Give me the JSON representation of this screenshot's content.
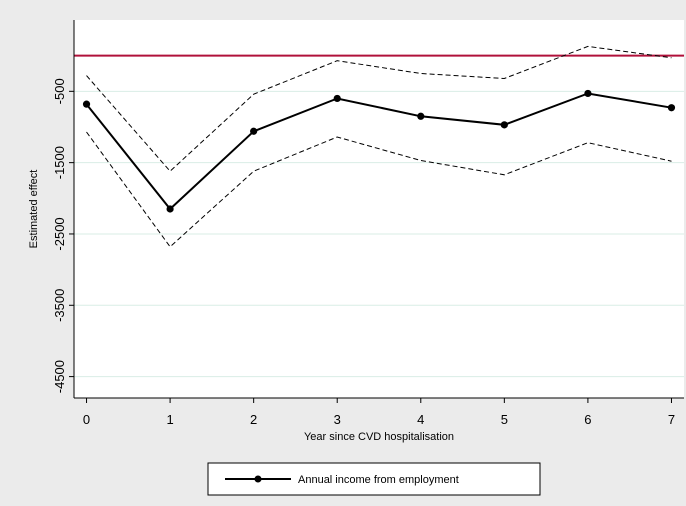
{
  "chart_data": {
    "type": "line",
    "title": "",
    "xlabel": "Year since CVD hospitalisation",
    "ylabel": "Estimated effect",
    "x": [
      0,
      1,
      2,
      3,
      4,
      5,
      6,
      7
    ],
    "xlim": [
      -0.15,
      7.15
    ],
    "ylim": [
      -4800,
      500
    ],
    "x_ticks": [
      "0",
      "1",
      "2",
      "3",
      "4",
      "5",
      "6",
      "7"
    ],
    "y_ticks": [
      -500,
      -1500,
      -2500,
      -3500,
      -4500
    ],
    "grid": true,
    "reference_line": {
      "y": 0,
      "color": "#b0103a"
    },
    "series": [
      {
        "name": "Annual income from employment",
        "role": "estimate",
        "style": "solid-markers",
        "values": [
          -680,
          -2150,
          -1060,
          -600,
          -850,
          -970,
          -530,
          -730
        ]
      },
      {
        "name": "",
        "role": "upper-ci",
        "style": "dashed",
        "values": [
          -280,
          -1620,
          -540,
          -70,
          -250,
          -320,
          130,
          -30
        ]
      },
      {
        "name": "",
        "role": "lower-ci",
        "style": "dashed",
        "values": [
          -1070,
          -2680,
          -1620,
          -1140,
          -1470,
          -1670,
          -1220,
          -1480
        ]
      }
    ],
    "legend": {
      "position": "bottom-center",
      "entries": [
        "Annual income from employment"
      ]
    }
  }
}
